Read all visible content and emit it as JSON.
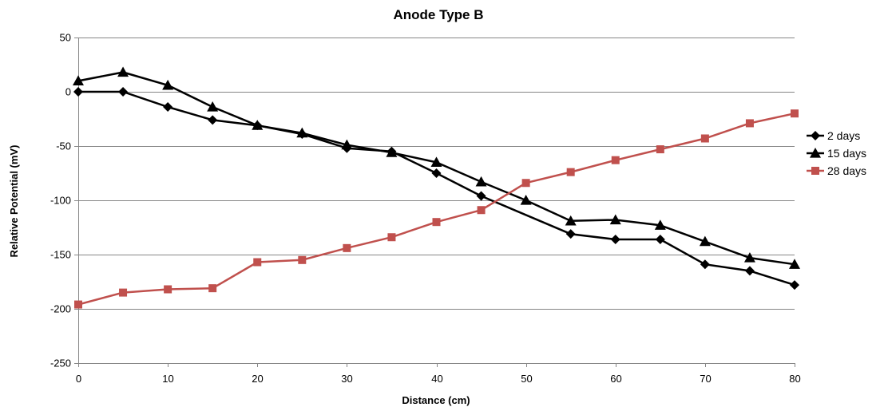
{
  "chart_data": {
    "type": "line",
    "title": "Anode Type B",
    "xlabel": "Distance (cm)",
    "ylabel": "Relative Potential (mV)",
    "xlim": [
      0,
      80
    ],
    "ylim": [
      -250,
      50
    ],
    "xticks": [
      0,
      10,
      20,
      30,
      40,
      50,
      60,
      70,
      80
    ],
    "yticks": [
      50,
      0,
      -50,
      -100,
      -150,
      -200,
      -250
    ],
    "grid": {
      "horizontal": true,
      "vertical": false
    },
    "legend_position": "right",
    "series": [
      {
        "name": "2 days",
        "color": "#000000",
        "marker": "diamond",
        "x": [
          0,
          5,
          10,
          15,
          20,
          25,
          30,
          35,
          40,
          45,
          55,
          60,
          65,
          70,
          75,
          80
        ],
        "y": [
          0,
          0,
          -14,
          -26,
          -31,
          -39,
          -52,
          -55,
          -75,
          -96,
          -131,
          -136,
          -136,
          -159,
          -165,
          -178
        ]
      },
      {
        "name": "15 days",
        "color": "#000000",
        "marker": "triangle",
        "x": [
          0,
          5,
          10,
          15,
          20,
          25,
          30,
          35,
          40,
          45,
          50,
          55,
          60,
          65,
          70,
          75,
          80
        ],
        "y": [
          10,
          18,
          6,
          -14,
          -31,
          -38,
          -49,
          -56,
          -65,
          -83,
          -100,
          -119,
          -118,
          -123,
          -138,
          -153,
          -159
        ]
      },
      {
        "name": "28 days",
        "color": "#c0504d",
        "marker": "square",
        "x": [
          0,
          5,
          10,
          15,
          20,
          25,
          30,
          35,
          40,
          45,
          50,
          55,
          60,
          65,
          70,
          75,
          80
        ],
        "y": [
          -196,
          -185,
          -182,
          -181,
          -157,
          -155,
          -144,
          -134,
          -120,
          -109,
          -84,
          -74,
          -63,
          -53,
          -43,
          -29,
          -20
        ]
      }
    ]
  }
}
